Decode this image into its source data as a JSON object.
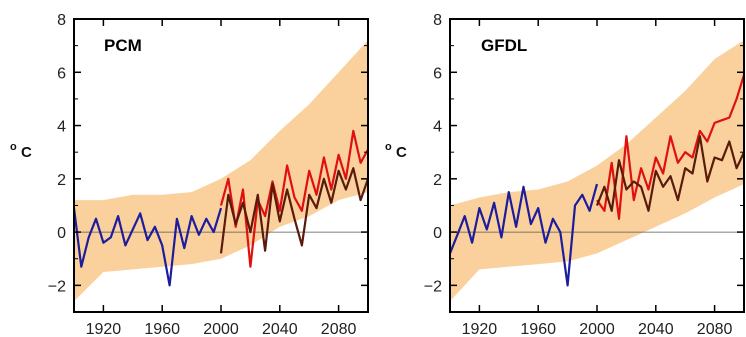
{
  "chart_data": [
    {
      "type": "line",
      "title": "PCM",
      "ylabel": "o C",
      "ylabel_parts": [
        "o",
        "C"
      ],
      "xlim": [
        1900,
        2100
      ],
      "ylim": [
        -3,
        8
      ],
      "xticks": [
        1920,
        1960,
        2000,
        2040,
        2080
      ],
      "yticks": [
        -2,
        0,
        2,
        4,
        6,
        8
      ],
      "zero_line": true,
      "grid": false,
      "envelope": {
        "color": "#f9c98c",
        "x": [
          1900,
          1920,
          1940,
          1960,
          1980,
          2000,
          2020,
          2040,
          2060,
          2080,
          2100
        ],
        "lower": [
          -2.6,
          -1.5,
          -1.4,
          -1.3,
          -1.2,
          -1.0,
          -0.5,
          0.2,
          0.6,
          1.2,
          1.5
        ],
        "upper": [
          1.2,
          1.2,
          1.4,
          1.4,
          1.5,
          2.0,
          2.7,
          3.8,
          4.8,
          6.0,
          7.2
        ]
      },
      "series": [
        {
          "color": "#1c1c9c",
          "x": [
            1900,
            1905,
            1910,
            1915,
            1920,
            1925,
            1930,
            1935,
            1940,
            1945,
            1950,
            1955,
            1960,
            1965,
            1970,
            1975,
            1980,
            1985,
            1990,
            1995,
            2000
          ],
          "y": [
            0.9,
            -1.3,
            -0.2,
            0.5,
            -0.4,
            -0.2,
            0.6,
            -0.5,
            0.1,
            0.7,
            -0.3,
            0.2,
            -0.5,
            -2.0,
            0.5,
            -0.6,
            0.6,
            -0.1,
            0.5,
            0.0,
            0.9
          ]
        },
        {
          "color": "#e01010",
          "x": [
            2000,
            2005,
            2010,
            2015,
            2020,
            2025,
            2030,
            2035,
            2040,
            2045,
            2050,
            2055,
            2060,
            2065,
            2070,
            2075,
            2080,
            2085,
            2090,
            2095,
            2100
          ],
          "y": [
            1.0,
            2.0,
            0.2,
            1.6,
            -1.3,
            1.2,
            0.6,
            1.9,
            0.8,
            2.5,
            1.3,
            0.8,
            2.3,
            1.4,
            2.8,
            1.6,
            2.9,
            2.0,
            3.8,
            2.6,
            3.1
          ]
        },
        {
          "color": "#5a1a0c",
          "x": [
            2000,
            2005,
            2010,
            2015,
            2020,
            2025,
            2030,
            2035,
            2040,
            2045,
            2050,
            2055,
            2060,
            2065,
            2070,
            2075,
            2080,
            2085,
            2090,
            2095,
            2100
          ],
          "y": [
            -0.8,
            1.4,
            0.3,
            1.1,
            0.0,
            1.4,
            -0.7,
            1.8,
            0.4,
            1.6,
            0.5,
            -0.5,
            1.4,
            0.9,
            2.0,
            1.1,
            2.3,
            1.6,
            2.4,
            1.2,
            2.0
          ]
        }
      ]
    },
    {
      "type": "line",
      "title": "GFDL",
      "ylabel": "o C",
      "ylabel_parts": [
        "o",
        "C"
      ],
      "xlim": [
        1900,
        2100
      ],
      "ylim": [
        -3,
        8
      ],
      "xticks": [
        1920,
        1960,
        2000,
        2040,
        2080
      ],
      "yticks": [
        -2,
        0,
        2,
        4,
        6,
        8
      ],
      "zero_line": true,
      "grid": false,
      "envelope": {
        "color": "#f9c98c",
        "x": [
          1900,
          1920,
          1940,
          1960,
          1980,
          2000,
          2020,
          2040,
          2060,
          2080,
          2100
        ],
        "lower": [
          -2.6,
          -1.4,
          -1.3,
          -1.2,
          -1.1,
          -0.8,
          -0.3,
          0.2,
          0.7,
          1.3,
          1.8
        ],
        "upper": [
          1.0,
          1.3,
          1.5,
          1.6,
          1.9,
          2.5,
          3.3,
          4.3,
          5.3,
          6.5,
          7.2
        ]
      },
      "series": [
        {
          "color": "#1c1c9c",
          "x": [
            1900,
            1905,
            1910,
            1915,
            1920,
            1925,
            1930,
            1935,
            1940,
            1945,
            1950,
            1955,
            1960,
            1965,
            1970,
            1975,
            1980,
            1985,
            1990,
            1995,
            2000
          ],
          "y": [
            -0.8,
            -0.1,
            0.6,
            -0.4,
            0.9,
            0.1,
            1.1,
            -0.2,
            1.5,
            0.2,
            1.7,
            0.3,
            0.9,
            -0.4,
            0.5,
            0.0,
            -2.0,
            1.0,
            1.4,
            0.8,
            1.8
          ]
        },
        {
          "color": "#e01010",
          "x": [
            2000,
            2005,
            2010,
            2015,
            2020,
            2025,
            2030,
            2035,
            2040,
            2045,
            2050,
            2055,
            2060,
            2065,
            2070,
            2075,
            2080,
            2085,
            2090,
            2095,
            2100
          ],
          "y": [
            1.2,
            0.8,
            2.6,
            0.5,
            3.6,
            1.2,
            2.4,
            1.6,
            2.8,
            2.2,
            3.6,
            2.6,
            3.0,
            2.8,
            3.8,
            3.4,
            4.1,
            4.2,
            4.3,
            5.0,
            5.9
          ]
        },
        {
          "color": "#5a1a0c",
          "x": [
            2000,
            2005,
            2010,
            2015,
            2020,
            2025,
            2030,
            2035,
            2040,
            2045,
            2050,
            2055,
            2060,
            2065,
            2070,
            2075,
            2080,
            2085,
            2090,
            2095,
            2100
          ],
          "y": [
            1.0,
            1.7,
            0.8,
            2.7,
            1.6,
            1.9,
            1.7,
            0.8,
            2.3,
            1.7,
            2.1,
            1.2,
            2.4,
            2.2,
            3.6,
            1.9,
            2.8,
            2.7,
            3.4,
            2.4,
            3.0
          ]
        }
      ]
    }
  ]
}
